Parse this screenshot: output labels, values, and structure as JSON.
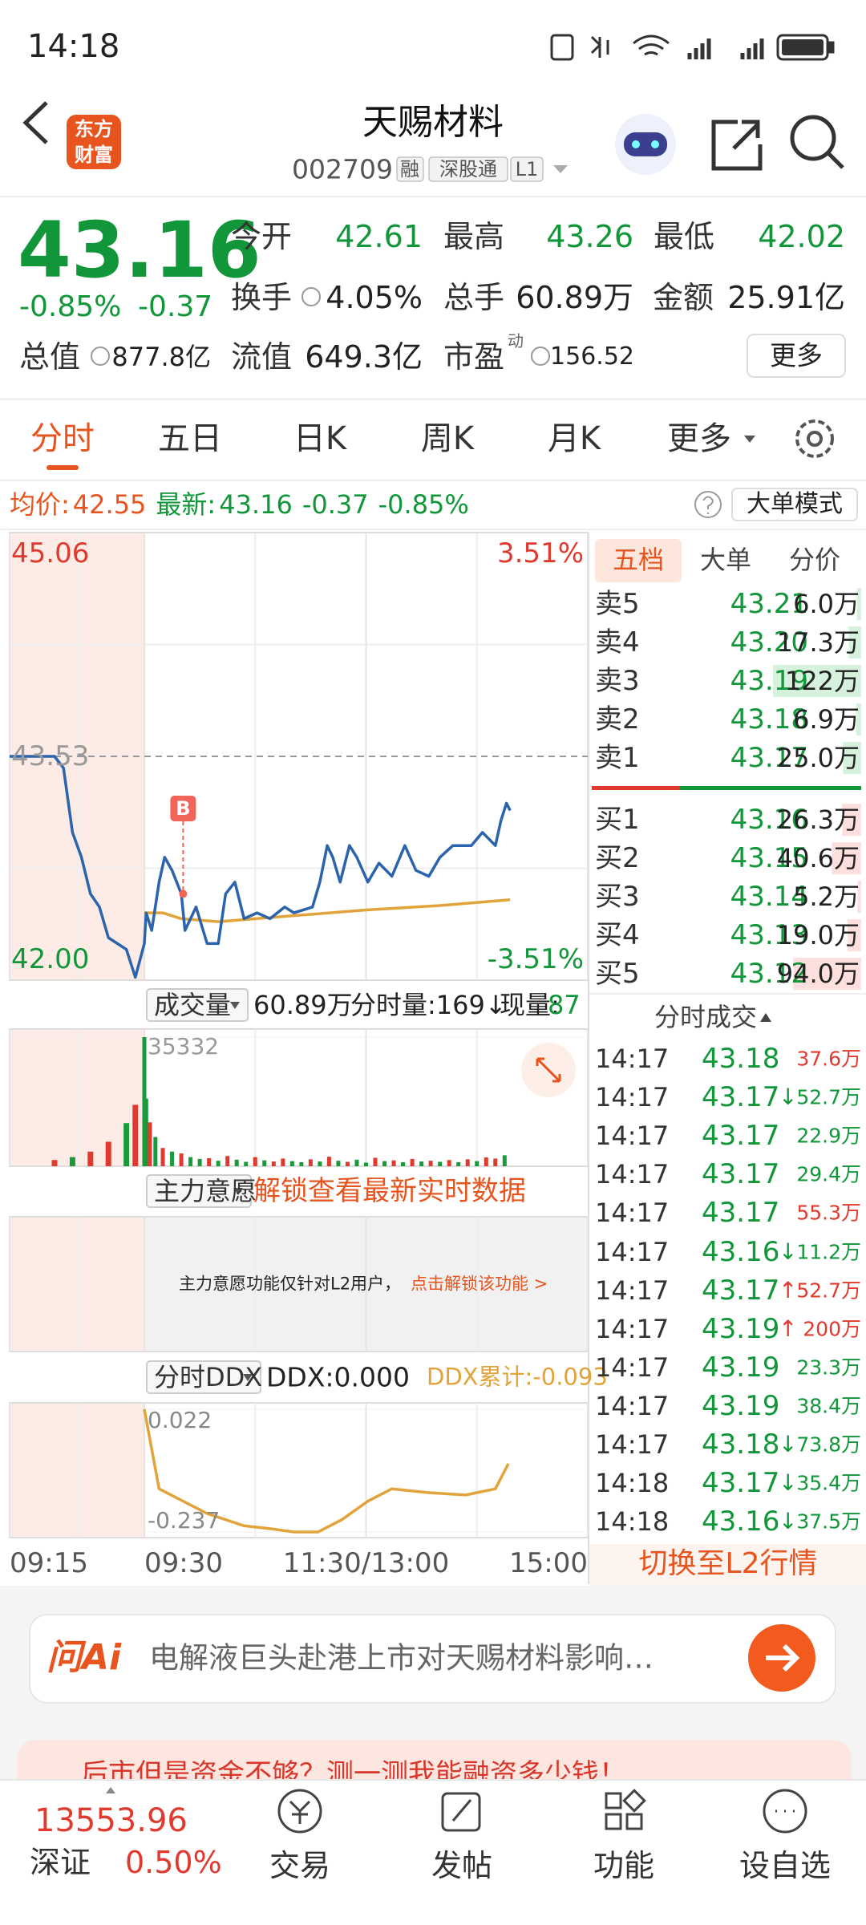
{
  "status_bar": {
    "time": "14:18"
  },
  "header": {
    "logo": [
      "东方",
      "财富"
    ],
    "title": "天赐材料",
    "code": "002709",
    "tags": [
      "融",
      "深股通",
      "L1"
    ]
  },
  "quote": {
    "price": "43.16",
    "change_pct": "-0.85%",
    "change": "-0.37",
    "color": "#12963a",
    "stats": [
      {
        "label": "今开",
        "value": "42.61",
        "color": "#12963a"
      },
      {
        "label": "最高",
        "value": "43.26",
        "color": "#12963a"
      },
      {
        "label": "最低",
        "value": "42.02",
        "color": "#12963a"
      },
      {
        "label": "换手",
        "value": "4.05%"
      },
      {
        "label": "总手",
        "value": "60.89万"
      },
      {
        "label": "金额",
        "value": "25.91亿"
      },
      {
        "label": "总值",
        "value": "877.8亿"
      },
      {
        "label": "流值",
        "value": "649.3亿"
      },
      {
        "label": "市盈",
        "sup": "动",
        "value": "156.52"
      }
    ],
    "more": "更多"
  },
  "tabs": {
    "items": [
      "分时",
      "五日",
      "日K",
      "周K",
      "月K",
      "更多"
    ],
    "active": 0
  },
  "summary": {
    "avg_label": "均价:",
    "avg": "42.55",
    "last_label": "最新:",
    "last": "43.16",
    "change": "-0.37",
    "change_pct": "-0.85%",
    "mode": "大单模式"
  },
  "intraday": {
    "xlim": [
      -15,
      240
    ],
    "xticks": [
      {
        "value": -15,
        "label": "09:15"
      },
      {
        "value": 0,
        "label": "09:30"
      },
      {
        "value": 120,
        "label": "11:30/13:00"
      },
      {
        "value": 240,
        "label": "15:00"
      }
    ],
    "price": {
      "ylim": [
        {
          "value": 42,
          "label": "42.00"
        },
        45.06
      ],
      "yticks": [
        45.06,
        {
          "value": 42,
          "label": "42.00"
        }
      ],
      "y2lim": [
        -3.51,
        3.51
      ],
      "y2ticks": [
        {
          "value": 3.51,
          "label": "3.51%"
        },
        {
          "value": -3.51,
          "label": "-3.51%"
        }
      ],
      "reference": 43.53,
      "line": {
        "color": "#2b63ad",
        "x": [
          -15,
          -10,
          -9,
          -8,
          -7,
          -6,
          -5,
          -4,
          -3,
          -2,
          -1,
          0,
          1,
          4,
          8,
          11,
          15,
          20,
          22,
          28,
          34,
          40,
          44,
          49,
          54,
          61,
          68,
          76,
          81,
          91,
          95,
          99,
          102,
          106,
          111,
          115,
          121,
          127,
          134,
          141,
          147,
          154,
          160,
          167,
          177,
          183,
          190,
          193,
          196,
          198
        ],
        "values": [
          43.53,
          43.53,
          43.45,
          43.01,
          42.84,
          42.59,
          42.5,
          42.29,
          42.25,
          42.21,
          42.02,
          42.25,
          42.46,
          42.34,
          42.67,
          42.84,
          42.75,
          42.59,
          42.34,
          42.5,
          42.25,
          42.25,
          42.59,
          42.67,
          42.42,
          42.46,
          42.42,
          42.5,
          42.46,
          42.5,
          42.67,
          42.92,
          42.84,
          42.67,
          42.92,
          42.84,
          42.67,
          42.8,
          42.71,
          42.92,
          42.75,
          42.71,
          42.84,
          42.92,
          42.92,
          43.01,
          42.92,
          43.09,
          43.21,
          43.16
        ]
      },
      "avg": {
        "color": "#e2a33a",
        "x": [
          0,
          10,
          20,
          40,
          80,
          120,
          160,
          198
        ],
        "values": [
          42.46,
          42.46,
          42.42,
          42.4,
          42.44,
          42.48,
          42.51,
          42.55
        ]
      },
      "marker": {
        "label": "B",
        "x": 21,
        "value": 42.59,
        "color": "#f0645a"
      }
    },
    "volume": {
      "title": "成交量",
      "total": "60.89万",
      "minute": "分时量:169↓",
      "current_label": "现量:",
      "current": "87",
      "ylim": [
        0,
        35332
      ],
      "yticks": [
        35332
      ],
      "x": [
        -10,
        -8,
        -6,
        -4,
        -2,
        -1,
        0,
        1,
        3,
        6,
        10,
        15,
        20,
        25,
        30,
        35,
        40,
        45,
        50,
        55,
        60,
        65,
        70,
        75,
        80,
        85,
        90,
        95,
        100,
        105,
        110,
        115,
        120,
        125,
        130,
        135,
        140,
        145,
        150,
        155,
        160,
        165,
        170,
        175,
        180,
        185,
        190,
        195
      ],
      "values": [
        1700,
        2500,
        4000,
        6700,
        11800,
        16800,
        35332,
        18500,
        12000,
        8000,
        5000,
        4000,
        3500,
        2500,
        2000,
        2200,
        1500,
        2800,
        1800,
        1200,
        2500,
        1600,
        1300,
        2100,
        1400,
        1100,
        1900,
        1300,
        2600,
        1500,
        1200,
        1800,
        1000,
        2300,
        1400,
        1600,
        1100,
        2000,
        1300,
        1500,
        1200,
        1700,
        1100,
        1900,
        1400,
        2400,
        2100,
        3000
      ],
      "colors": [
        "#e03a2f",
        "#1b9a3c",
        "#e03a2f",
        "#e03a2f",
        "#1b9a3c",
        "#e03a2f",
        "#1b9a3c",
        "#1b9a3c",
        "#e03a2f",
        "#1b9a3c",
        "#e03a2f",
        "#1b9a3c",
        "#e03a2f",
        "#1b9a3c",
        "#1b9a3c",
        "#e03a2f",
        "#1b9a3c",
        "#e03a2f",
        "#1b9a3c",
        "#1b9a3c",
        "#e03a2f",
        "#1b9a3c",
        "#e03a2f",
        "#e03a2f",
        "#1b9a3c",
        "#1b9a3c",
        "#e03a2f",
        "#1b9a3c",
        "#e03a2f",
        "#1b9a3c",
        "#e03a2f",
        "#1b9a3c",
        "#1b9a3c",
        "#e03a2f",
        "#1b9a3c",
        "#e03a2f",
        "#1b9a3c",
        "#e03a2f",
        "#1b9a3c",
        "#e03a2f",
        "#1b9a3c",
        "#e03a2f",
        "#1b9a3c",
        "#e03a2f",
        "#1b9a3c",
        "#e03a2f",
        "#e03a2f",
        "#1b9a3c"
      ]
    },
    "intent": {
      "title": "主力意愿",
      "unlock": "解锁查看最新实时数据",
      "notice": "主力意愿功能仅针对L2用户，",
      "link": "点击解锁该功能 >"
    },
    "ddx": {
      "title": "分时DDX",
      "value": "DDX:0.000",
      "cumulative": "DDX累计:-0.093",
      "ylim": [
        -0.237,
        0.022
      ],
      "yticks": [
        0.022,
        -0.237
      ],
      "line": {
        "color": "#e2a33a",
        "x": [
          0,
          8,
          34,
          54,
          68,
          81,
          94,
          107,
          121,
          134,
          154,
          174,
          190,
          197
        ],
        "values": [
          0.022,
          -0.146,
          -0.198,
          -0.224,
          -0.23,
          -0.237,
          -0.237,
          -0.211,
          -0.172,
          -0.146,
          -0.154,
          -0.159,
          -0.146,
          -0.093
        ]
      }
    }
  },
  "order_book": {
    "tabs": [
      "五档",
      "大单",
      "分价"
    ],
    "active": 0,
    "price_color": "#12963a",
    "asks": [
      {
        "label": "卖5",
        "price": "43.21",
        "volume": {
          "value": 6.0,
          "label": "6.0万"
        }
      },
      {
        "label": "卖4",
        "price": "43.20",
        "volume": {
          "value": 17.3,
          "label": "17.3万"
        }
      },
      {
        "label": "卖3",
        "price": "43.19",
        "volume": {
          "value": 122,
          "label": "122万"
        }
      },
      {
        "label": "卖2",
        "price": "43.18",
        "volume": {
          "value": 6.9,
          "label": "6.9万"
        }
      },
      {
        "label": "卖1",
        "price": "43.17",
        "volume": {
          "value": 25.0,
          "label": "25.0万"
        }
      }
    ],
    "bids": [
      {
        "label": "买1",
        "price": "43.16",
        "volume": {
          "value": 26.3,
          "label": "26.3万"
        }
      },
      {
        "label": "买2",
        "price": "43.15",
        "volume": {
          "value": 40.6,
          "label": "40.6万"
        }
      },
      {
        "label": "买3",
        "price": "43.14",
        "volume": {
          "value": 5.2,
          "label": "5.2万"
        }
      },
      {
        "label": "买4",
        "price": "43.13",
        "volume": {
          "value": 19.0,
          "label": "19.0万"
        }
      },
      {
        "label": "买5",
        "price": "43.12",
        "volume": {
          "value": 94.0,
          "label": "94.0万"
        }
      }
    ]
  },
  "trades": {
    "title": "分时成交",
    "price_color": "#12963a",
    "rows": [
      {
        "time": "14:17",
        "price": "43.18",
        "volume": "37.6万",
        "volume_color": "#e03a2f"
      },
      {
        "time": "14:17",
        "price": "43.17",
        "arrow": "↓",
        "volume": "52.7万",
        "volume_color": "#12963a"
      },
      {
        "time": "14:17",
        "price": "43.17",
        "volume": "22.9万",
        "volume_color": "#12963a"
      },
      {
        "time": "14:17",
        "price": "43.17",
        "volume": "29.4万",
        "volume_color": "#12963a"
      },
      {
        "time": "14:17",
        "price": "43.17",
        "volume": "55.3万",
        "volume_color": "#e03a2f"
      },
      {
        "time": "14:17",
        "price": "43.16",
        "arrow": "↓",
        "volume": "11.2万",
        "volume_color": "#12963a"
      },
      {
        "time": "14:17",
        "price": "43.17",
        "arrow": "↑",
        "volume": "52.7万",
        "volume_color": "#e03a2f"
      },
      {
        "time": "14:17",
        "price": "43.19",
        "arrow": "↑",
        "volume": "200万",
        "volume_color": "#e03a2f"
      },
      {
        "time": "14:17",
        "price": "43.19",
        "volume": "23.3万",
        "volume_color": "#12963a"
      },
      {
        "time": "14:17",
        "price": "43.19",
        "volume": "38.4万",
        "volume_color": "#12963a"
      },
      {
        "time": "14:17",
        "price": "43.18",
        "arrow": "↓",
        "volume": "73.8万",
        "volume_color": "#12963a"
      },
      {
        "time": "14:18",
        "price": "43.17",
        "arrow": "↓",
        "volume": "35.4万",
        "volume_color": "#12963a"
      },
      {
        "time": "14:18",
        "price": "43.16",
        "arrow": "↓",
        "volume": "37.5万",
        "volume_color": "#12963a"
      }
    ]
  },
  "l2_switch": "切换至L2行情",
  "ask_ai": {
    "logo": "问Ai",
    "prompt": "电解液巨头赴港上市对天赐材料影响…"
  },
  "promo": "后市但是资金不够？测一测我能融资多少钱！",
  "bottom_nav": {
    "index_value": "13553.96",
    "index_name": "深证",
    "index_change": "0.50%",
    "items": [
      "交易",
      "发帖",
      "功能",
      "设自选"
    ]
  }
}
